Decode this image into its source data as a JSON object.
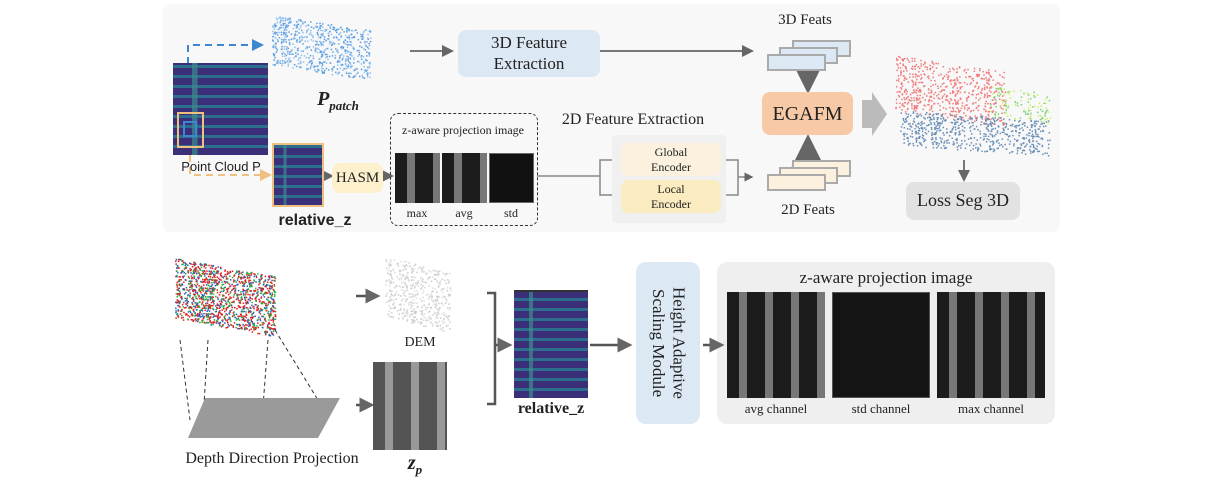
{
  "top": {
    "point_cloud_label": "Point Cloud P",
    "patch_label": "P",
    "patch_subscript": "patch",
    "feature_3d_box": "3D Feature Extraction",
    "feats_3d_label": "3D Feats",
    "egafm_box": "EGAFM",
    "feats_2d_label": "2D Feats",
    "loss_box": "Loss Seg 3D",
    "relative_z_label": "relative_z",
    "hasm_box": "HASM",
    "projection_group_title": "z-aware projection image",
    "projection_channels": [
      "max",
      "avg",
      "std"
    ],
    "feature_2d_title": "2D Feature Extraction",
    "global_encoder": "Global Encoder",
    "local_encoder": "Local Encoder"
  },
  "bottom": {
    "projection_label": "Depth Direction Projection",
    "dem_label": "DEM",
    "zp_label": "z",
    "zp_subscript": "p",
    "relative_z_label": "relative_z",
    "module_box": "Height Adaptive Scaling Module",
    "panel_title": "z-aware projection image",
    "channels": [
      "avg channel",
      "std channel",
      "max channel"
    ]
  },
  "colors": {
    "blue_box": "#dce8f3",
    "egafm": "#f7c9a6",
    "hasm": "#fdf0cc",
    "global_encoder": "#fbf1de",
    "local_encoder": "#faebc0",
    "loss": "#e2e2e2",
    "dashed_blue": "#3d86d0",
    "dashed_orange": "#f0c080"
  }
}
